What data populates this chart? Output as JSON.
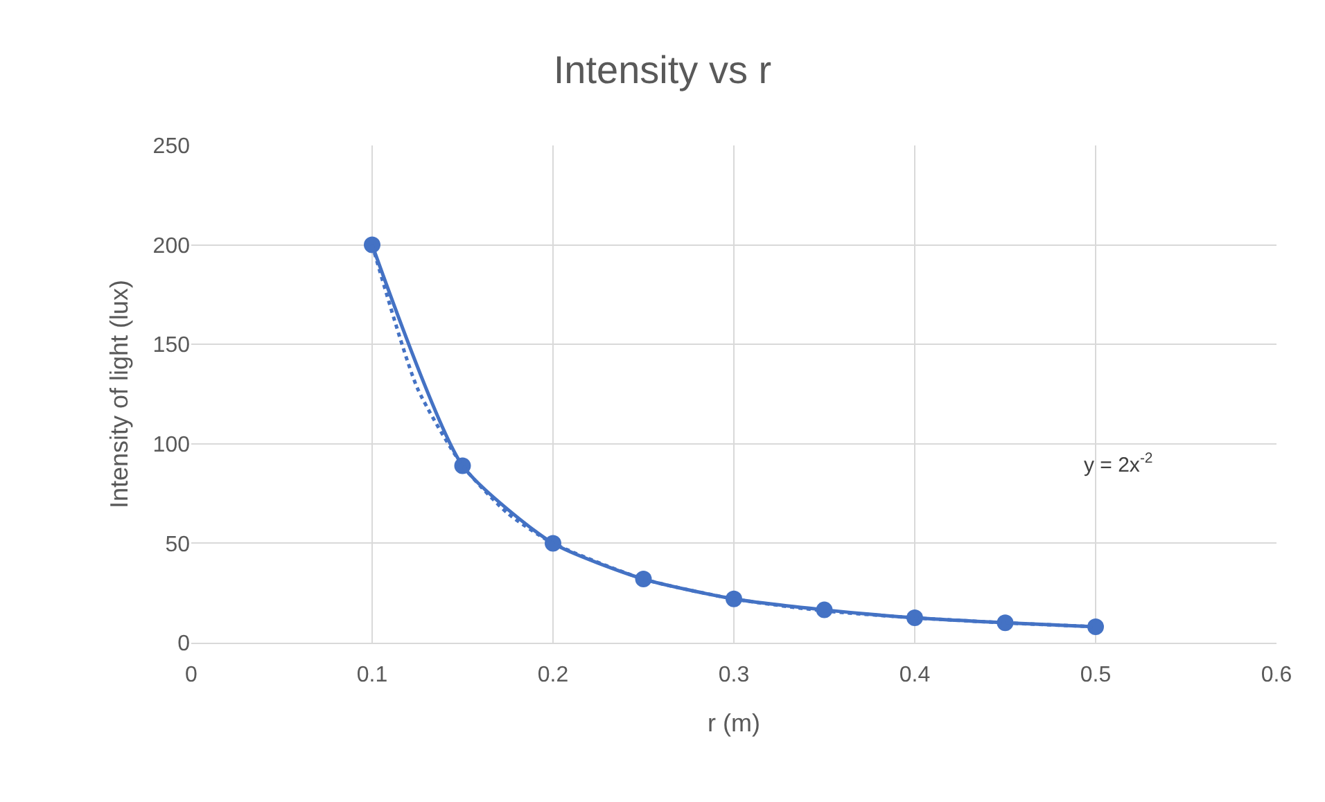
{
  "chart_data": {
    "type": "line",
    "title": "Intensity vs r",
    "xlabel": "r (m)",
    "ylabel": "Intensity of light (lux)",
    "xlim": [
      0,
      0.6
    ],
    "xticks": [
      0,
      0.1,
      0.2,
      0.3,
      0.4,
      0.5,
      0.6
    ],
    "ylim": [
      0,
      250
    ],
    "yticks": [
      0,
      50,
      100,
      150,
      200,
      250
    ],
    "grid": true,
    "marker": "circle",
    "line_style": "solid",
    "annotations": [
      "y = 2x$^{-2}$"
    ],
    "series": [
      {
        "color": "#4472c4",
        "x": [
          0.1,
          0.15,
          0.2,
          0.25,
          0.3,
          0.35,
          0.4,
          0.45,
          0.5
        ],
        "values": [
          200,
          89,
          50,
          32,
          22,
          16.5,
          12.5,
          10,
          8
        ]
      },
      {
        "type": "line",
        "color": "#4472c4",
        "line_style": "dotted",
        "marker": "none",
        "x": [
          0.1,
          0.125,
          0.15,
          0.175,
          0.2,
          0.25,
          0.3,
          0.35,
          0.4,
          0.45,
          0.5
        ],
        "values": [
          200,
          128,
          89,
          65,
          50,
          32,
          22,
          16,
          12.5,
          10,
          8
        ]
      }
    ]
  }
}
